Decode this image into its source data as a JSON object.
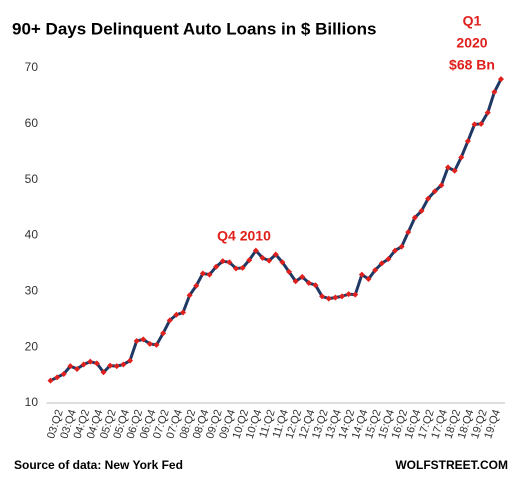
{
  "chart_data": {
    "type": "line",
    "title": "90+ Days Delinquent Auto Loans in $ Billions",
    "source": "Source of data: New York Fed",
    "credit": "WOLFSTREET.COM",
    "annotations": [
      "Q4 2010",
      "Q1",
      "2020",
      "$68 Bn"
    ],
    "categories": [
      null,
      "03:Q2",
      null,
      "03:Q4",
      null,
      "04:Q2",
      null,
      "04:Q4",
      null,
      "05:Q2",
      null,
      "05:Q4",
      null,
      "06:Q2",
      null,
      "06:Q4",
      null,
      "07:Q2",
      null,
      "07:Q4",
      null,
      "08:Q2",
      null,
      "08:Q4",
      null,
      "09:Q2",
      null,
      "09:Q4",
      null,
      "10:Q2",
      null,
      "10:Q4",
      null,
      "11:Q2",
      null,
      "11:Q4",
      null,
      "12:Q2",
      null,
      "12:Q4",
      null,
      "13:Q2",
      null,
      "13:Q4",
      null,
      "14:Q2",
      null,
      "14:Q4",
      null,
      "15:Q2",
      null,
      "15:Q4",
      null,
      "16:Q2",
      null,
      "16:Q4",
      null,
      "17:Q2",
      null,
      "17:Q4",
      null,
      "18:Q2",
      null,
      "18:Q4",
      null,
      "19:Q2",
      null,
      "19:Q4",
      null
    ],
    "series": [
      {
        "color": "#203864",
        "marker_color": "#e0201c",
        "values": [
          14.0,
          14.6,
          15.2,
          16.6,
          16.1,
          16.9,
          17.4,
          17.1,
          15.5,
          16.7,
          16.6,
          16.9,
          17.6,
          21.1,
          21.4,
          20.6,
          20.4,
          22.5,
          24.8,
          25.8,
          26.2,
          29.3,
          31.0,
          33.2,
          33.0,
          34.4,
          35.4,
          35.2,
          34.1,
          34.2,
          35.6,
          37.3,
          36.0,
          35.5,
          36.6,
          35.2,
          33.5,
          31.8,
          32.6,
          31.5,
          31.1,
          29.1,
          28.7,
          28.9,
          29.1,
          29.5,
          29.4,
          33.0,
          32.2,
          33.8,
          35.0,
          35.8,
          37.3,
          38.0,
          40.6,
          43.2,
          44.4,
          46.6,
          47.9,
          49.0,
          52.2,
          51.6,
          54.0,
          56.9,
          59.9,
          60.0,
          62.0,
          65.7,
          68.0
        ]
      }
    ],
    "ylim": [
      10,
      70
    ],
    "yticks": [
      10,
      20,
      30,
      40,
      50,
      60,
      70
    ],
    "grid": false
  }
}
